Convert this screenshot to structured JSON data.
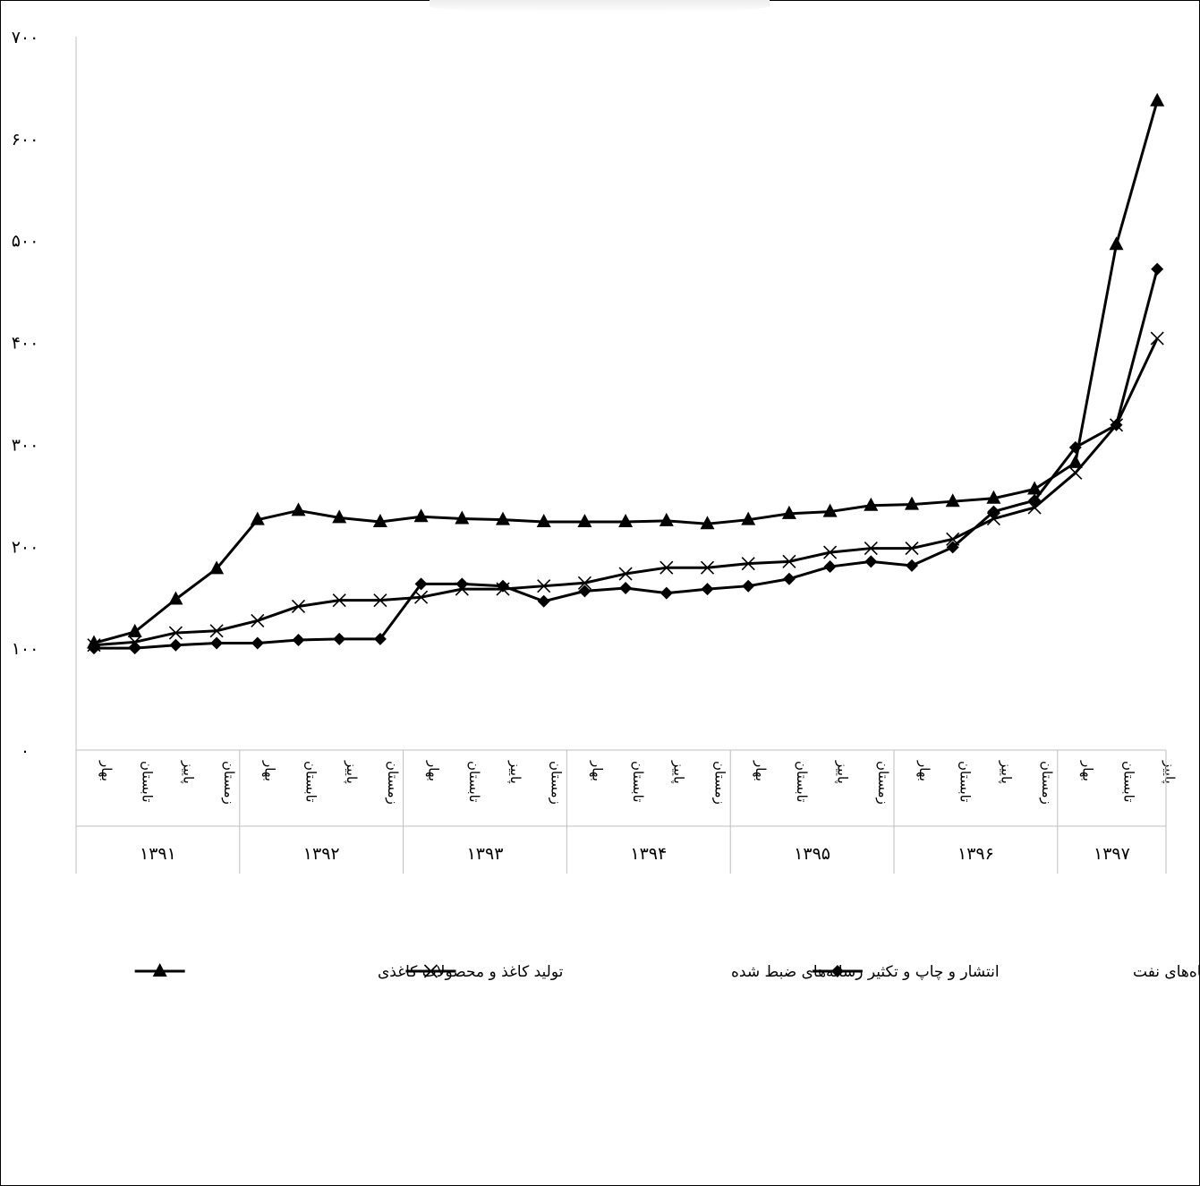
{
  "chart_data": {
    "type": "line",
    "title": "",
    "xlabel": "",
    "ylabel": "",
    "ylim": [
      0,
      700
    ],
    "y_ticks": [
      "۰",
      "۱۰۰",
      "۲۰۰",
      "۳۰۰",
      "۴۰۰",
      "۵۰۰",
      "۶۰۰",
      "۷۰۰"
    ],
    "grid": false,
    "legend_position": "bottom",
    "season_labels": [
      "بهار",
      "تابستان",
      "پاییز",
      "زمستان"
    ],
    "categories": [
      "۱۳۹۱ بهار",
      "۱۳۹۱ تابستان",
      "۱۳۹۱ پاییز",
      "۱۳۹۱ زمستان",
      "۱۳۹۲ بهار",
      "۱۳۹۲ تابستان",
      "۱۳۹۲ پاییز",
      "۱۳۹۲ زمستان",
      "۱۳۹۳ بهار",
      "۱۳۹۳ تابستان",
      "۱۳۹۳ پاییز",
      "۱۳۹۳ زمستان",
      "۱۳۹۴ بهار",
      "۱۳۹۴ تابستان",
      "۱۳۹۴ پاییز",
      "۱۳۹۴ زمستان",
      "۱۳۹۵ بهار",
      "۱۳۹۵ تابستان",
      "۱۳۹۵ پاییز",
      "۱۳۹۵ زمستان",
      "۱۳۹۶ بهار",
      "۱۳۹۶ تابستان",
      "۱۳۹۶ پاییز",
      "۱۳۹۶ زمستان",
      "۱۳۹۷ بهار",
      "۱۳۹۷ تابستان",
      "۱۳۹۷ پاییز"
    ],
    "groups": [
      {
        "label": "۱۳۹۱",
        "count": 4
      },
      {
        "label": "۱۳۹۲",
        "count": 4
      },
      {
        "label": "۱۳۹۳",
        "count": 4
      },
      {
        "label": "۱۳۹۴",
        "count": 4
      },
      {
        "label": "۱۳۹۵",
        "count": 4
      },
      {
        "label": "۱۳۹۶",
        "count": 4
      },
      {
        "label": "۱۳۹۷",
        "count": 3
      }
    ],
    "series": [
      {
        "name": "صنایع تولید زغال سنگ- پالایشگاه‌های نفت",
        "marker": "diamond",
        "values": [
          100,
          100,
          103,
          105,
          105,
          108,
          109,
          109,
          163,
          163,
          161,
          146,
          156,
          159,
          154,
          158,
          161,
          168,
          180,
          185,
          181,
          199,
          234,
          245,
          297,
          319,
          472
        ]
      },
      {
        "name": "انتشار و چاپ و تکثیر رسانه‌های ضبط شده",
        "marker": "x",
        "values": [
          103,
          106,
          115,
          117,
          127,
          141,
          147,
          147,
          150,
          158,
          158,
          161,
          164,
          173,
          179,
          179,
          183,
          185,
          194,
          198,
          198,
          207,
          227,
          238,
          272,
          319,
          404
        ]
      },
      {
        "name": "تولید کاغذ و محصولات کاغذی",
        "marker": "triangle",
        "values": [
          105,
          116,
          148,
          178,
          226,
          235,
          228,
          224,
          229,
          227,
          226,
          224,
          224,
          224,
          225,
          222,
          226,
          232,
          234,
          240,
          241,
          244,
          247,
          256,
          282,
          496,
          637
        ]
      }
    ],
    "colors": {
      "line": "#000000",
      "axis": "#bfbfbf",
      "border": "#000000"
    }
  }
}
